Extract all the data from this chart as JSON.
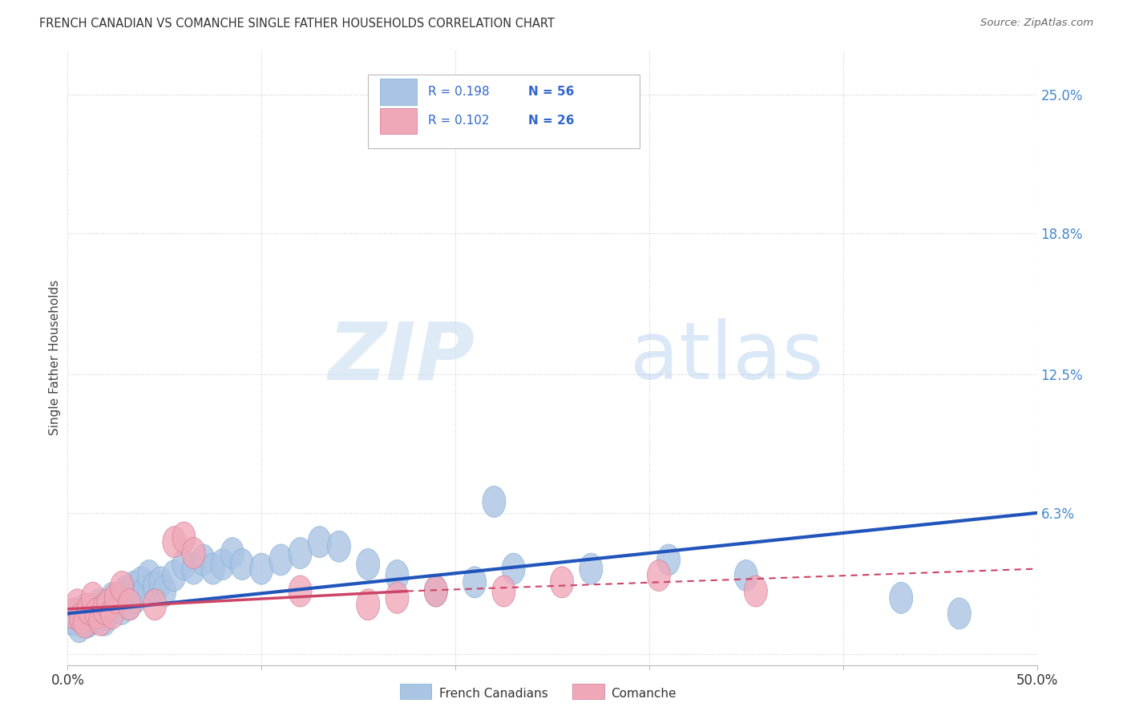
{
  "title": "FRENCH CANADIAN VS COMANCHE SINGLE FATHER HOUSEHOLDS CORRELATION CHART",
  "source": "Source: ZipAtlas.com",
  "ylabel": "Single Father Households",
  "xlim": [
    0.0,
    0.5
  ],
  "ylim": [
    -0.005,
    0.27
  ],
  "yticks": [
    0.0,
    0.063,
    0.125,
    0.188,
    0.25
  ],
  "ytick_labels": [
    "",
    "6.3%",
    "12.5%",
    "18.8%",
    "25.0%"
  ],
  "xticks": [
    0.0,
    0.1,
    0.2,
    0.3,
    0.4,
    0.5
  ],
  "xtick_labels": [
    "0.0%",
    "",
    "",
    "",
    "",
    "50.0%"
  ],
  "background_color": "#ffffff",
  "grid_color": "#cccccc",
  "watermark_zip": "ZIP",
  "watermark_atlas": "atlas",
  "french_color": "#aac4e4",
  "french_edge_color": "#7aaad0",
  "comanche_color": "#f0a8b8",
  "comanche_edge_color": "#d07090",
  "french_line_color": "#2255bb",
  "comanche_line_color": "#cc4466",
  "legend_french_r": "R = 0.198",
  "legend_french_n": "N = 56",
  "legend_comanche_r": "R = 0.102",
  "legend_comanche_n": "N = 26",
  "french_scatter_x": [
    0.003,
    0.005,
    0.006,
    0.008,
    0.009,
    0.01,
    0.011,
    0.012,
    0.013,
    0.014,
    0.015,
    0.016,
    0.017,
    0.018,
    0.019,
    0.02,
    0.021,
    0.022,
    0.023,
    0.025,
    0.027,
    0.028,
    0.03,
    0.032,
    0.034,
    0.035,
    0.038,
    0.04,
    0.042,
    0.045,
    0.048,
    0.05,
    0.055,
    0.06,
    0.065,
    0.07,
    0.075,
    0.08,
    0.085,
    0.09,
    0.1,
    0.11,
    0.12,
    0.13,
    0.14,
    0.155,
    0.17,
    0.19,
    0.21,
    0.23,
    0.27,
    0.31,
    0.35,
    0.43,
    0.46,
    0.22
  ],
  "french_scatter_y": [
    0.015,
    0.018,
    0.012,
    0.016,
    0.02,
    0.014,
    0.018,
    0.015,
    0.02,
    0.018,
    0.016,
    0.022,
    0.018,
    0.02,
    0.015,
    0.022,
    0.018,
    0.02,
    0.025,
    0.022,
    0.025,
    0.02,
    0.028,
    0.022,
    0.03,
    0.025,
    0.032,
    0.028,
    0.035,
    0.03,
    0.032,
    0.028,
    0.035,
    0.04,
    0.038,
    0.042,
    0.038,
    0.04,
    0.045,
    0.04,
    0.038,
    0.042,
    0.045,
    0.05,
    0.048,
    0.04,
    0.035,
    0.028,
    0.032,
    0.038,
    0.038,
    0.042,
    0.035,
    0.025,
    0.018,
    0.068
  ],
  "comanche_scatter_x": [
    0.003,
    0.005,
    0.007,
    0.009,
    0.011,
    0.013,
    0.015,
    0.017,
    0.019,
    0.021,
    0.023,
    0.025,
    0.028,
    0.032,
    0.045,
    0.055,
    0.06,
    0.065,
    0.12,
    0.155,
    0.17,
    0.19,
    0.225,
    0.255,
    0.305,
    0.355
  ],
  "comanche_scatter_y": [
    0.018,
    0.022,
    0.016,
    0.014,
    0.02,
    0.025,
    0.018,
    0.015,
    0.02,
    0.022,
    0.018,
    0.025,
    0.03,
    0.022,
    0.022,
    0.05,
    0.052,
    0.045,
    0.028,
    0.022,
    0.025,
    0.028,
    0.028,
    0.032,
    0.035,
    0.028
  ],
  "fc_line_x0": 0.0,
  "fc_line_y0": 0.018,
  "fc_line_x1": 0.5,
  "fc_line_y1": 0.063,
  "co_line_solid_x0": 0.0,
  "co_line_solid_y0": 0.02,
  "co_line_solid_x1": 0.175,
  "co_line_solid_y1": 0.028,
  "co_line_dash_x0": 0.175,
  "co_line_dash_y0": 0.028,
  "co_line_dash_x1": 0.5,
  "co_line_dash_y1": 0.038
}
